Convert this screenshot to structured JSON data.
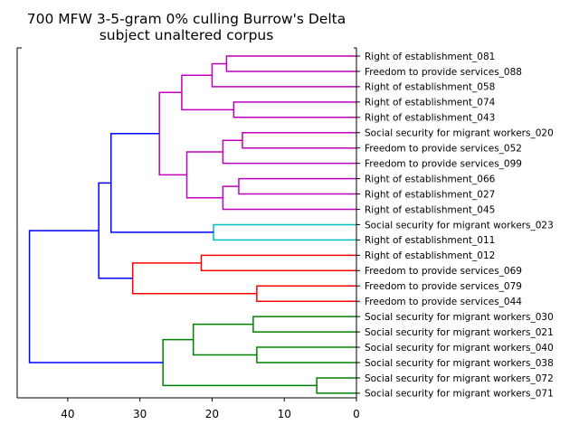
{
  "title": [
    "700 MFW 3-5-gram 0% culling Burrow's Delta",
    "subject unaltered corpus"
  ],
  "chart_data": {
    "type": "dendrogram",
    "orientation": "left",
    "xlim": [
      47,
      0
    ],
    "xticks": [
      40,
      30,
      20,
      10,
      0
    ],
    "leaves": [
      "Right of establishment_081",
      "Freedom to provide services_088",
      "Right of establishment_058",
      "Right of establishment_074",
      "Right of establishment_043",
      "Social security for migrant workers_020",
      "Freedom to provide services_052",
      "Freedom to provide services_099",
      "Right of establishment_066",
      "Right of establishment_027",
      "Right of establishment_045",
      "Social security for migrant workers_023",
      "Right of establishment_011",
      "Right of establishment_012",
      "Freedom to provide services_069",
      "Freedom to provide services_079",
      "Freedom to provide services_044",
      "Social security for migrant workers_030",
      "Social security for migrant workers_021",
      "Social security for migrant workers_040",
      "Social security for migrant workers_038",
      "Social security for migrant workers_072",
      "Social security for migrant workers_071"
    ],
    "colors": {
      "c1": "#bf00bf",
      "c2": "#00bfbf",
      "c3": "#ff0000",
      "c4": "#008000",
      "root": "#0000ff"
    },
    "merges": [
      {
        "id": "m1",
        "a": "L0",
        "b": "L1",
        "height": 18.0,
        "color": "c1"
      },
      {
        "id": "m2",
        "a": "m1",
        "b": "L2",
        "height": 20.0,
        "color": "c1"
      },
      {
        "id": "m3",
        "a": "L3",
        "b": "L4",
        "height": 17.0,
        "color": "c1"
      },
      {
        "id": "m4",
        "a": "m2",
        "b": "m3",
        "height": 24.2,
        "color": "c1"
      },
      {
        "id": "m5",
        "a": "L5",
        "b": "L6",
        "height": 15.8,
        "color": "c1"
      },
      {
        "id": "m6",
        "a": "m5",
        "b": "L7",
        "height": 18.5,
        "color": "c1"
      },
      {
        "id": "m7",
        "a": "L8",
        "b": "L9",
        "height": 16.3,
        "color": "c1"
      },
      {
        "id": "m8",
        "a": "m7",
        "b": "L10",
        "height": 18.5,
        "color": "c1"
      },
      {
        "id": "m9",
        "a": "m6",
        "b": "m8",
        "height": 23.5,
        "color": "c1"
      },
      {
        "id": "m10",
        "a": "m4",
        "b": "m9",
        "height": 27.3,
        "color": "c1"
      },
      {
        "id": "m11",
        "a": "L11",
        "b": "L12",
        "height": 19.8,
        "color": "c2"
      },
      {
        "id": "m12",
        "a": "m10",
        "b": "m11",
        "height": 34.0,
        "color": "root"
      },
      {
        "id": "m13",
        "a": "L13",
        "b": "L14",
        "height": 21.5,
        "color": "c3"
      },
      {
        "id": "m14",
        "a": "L15",
        "b": "L16",
        "height": 13.8,
        "color": "c3"
      },
      {
        "id": "m15",
        "a": "m13",
        "b": "m14",
        "height": 31.0,
        "color": "c3"
      },
      {
        "id": "m16",
        "a": "m12",
        "b": "m15",
        "height": 35.7,
        "color": "root"
      },
      {
        "id": "m17",
        "a": "L17",
        "b": "L18",
        "height": 14.3,
        "color": "c4"
      },
      {
        "id": "m18",
        "a": "L19",
        "b": "L20",
        "height": 13.8,
        "color": "c4"
      },
      {
        "id": "m19",
        "a": "m17",
        "b": "m18",
        "height": 22.6,
        "color": "c4"
      },
      {
        "id": "m20",
        "a": "L21",
        "b": "L22",
        "height": 5.5,
        "color": "c4"
      },
      {
        "id": "m21",
        "a": "m19",
        "b": "m20",
        "height": 26.8,
        "color": "c4"
      },
      {
        "id": "m22",
        "a": "m16",
        "b": "m21",
        "height": 45.3,
        "color": "root"
      }
    ]
  }
}
